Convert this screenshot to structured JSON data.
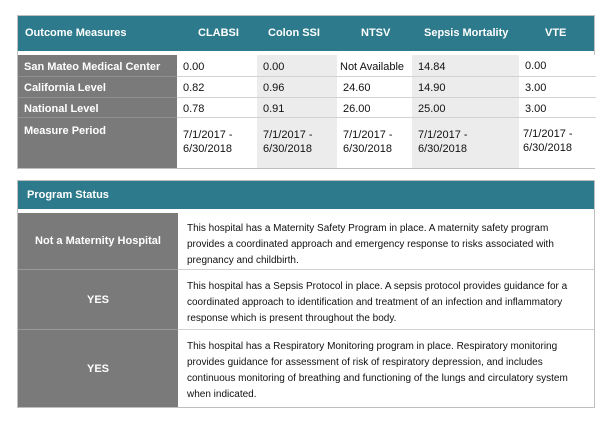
{
  "outcome": {
    "headers": [
      "Outcome Measures",
      "CLABSI",
      "Colon SSI",
      "NTSV",
      "Sepsis Mortality",
      "VTE"
    ],
    "rows": [
      {
        "label": "San Mateo Medical Center",
        "values": [
          "0.00",
          "0.00",
          "Not Available",
          "14.84",
          "0.00"
        ]
      },
      {
        "label": "California Level",
        "values": [
          "0.82",
          "0.96",
          "24.60",
          "14.90",
          "3.00"
        ]
      },
      {
        "label": "National Level",
        "values": [
          "0.78",
          "0.91",
          "26.00",
          "25.00",
          "3.00"
        ]
      },
      {
        "label": "Measure Period",
        "values": [
          "7/1/2017 - 6/30/2018",
          "7/1/2017 - 6/30/2018",
          "7/1/2017 - 6/30/2018",
          "7/1/2017 - 6/30/2018",
          "7/1/2017 - 6/30/2018"
        ]
      }
    ]
  },
  "program": {
    "title": "Program Status",
    "rows": [
      {
        "status": "Not a Maternity Hospital",
        "description": "This hospital has a Maternity Safety Program in place. A maternity safety program provides a coordinated approach and emergency response to risks associated with pregnancy and childbirth."
      },
      {
        "status": "YES",
        "description": "This hospital has a Sepsis Protocol in place. A sepsis protocol provides guidance for a coordinated approach to identification and treatment of an infection and inflammatory response which is present throughout the body."
      },
      {
        "status": "YES",
        "description": "This hospital has a Respiratory Monitoring program in place. Respiratory monitoring provides guidance for assessment of risk of respiratory depression, and includes continuous monitoring of breathing and functioning of the lungs and circulatory system when indicated."
      }
    ]
  }
}
